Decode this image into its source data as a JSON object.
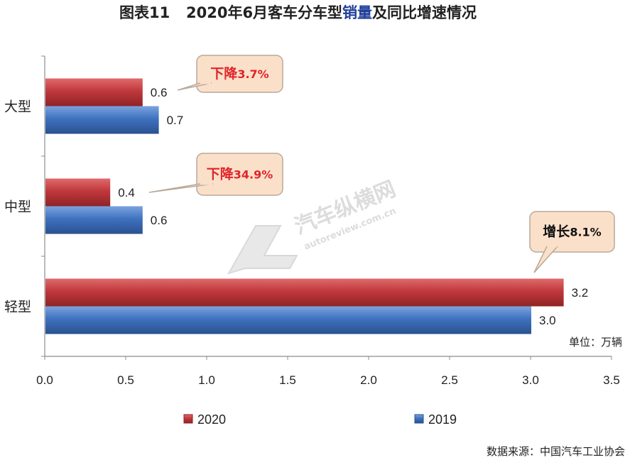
{
  "title_prefix": "图表11",
  "title_parts": [
    {
      "text": "2020年6月客车分车型",
      "color": "#222222"
    },
    {
      "text": "销量",
      "color": "#1f3f99"
    },
    {
      "text": "及同比增速情况",
      "color": "#222222"
    }
  ],
  "unit_label": "单位：万辆",
  "source_label": "数据来源：中国汽车工业协会",
  "watermark": {
    "brand": "汽车纵横网",
    "url": "autoreview.com.cn"
  },
  "colors": {
    "series_2020": "#c0383b",
    "series_2019": "#3f72bf",
    "callout_fill": "#fbe0c9",
    "callout_border": "#b8a99a"
  },
  "chart_data": {
    "type": "bar",
    "orientation": "horizontal",
    "categories": [
      "大型",
      "中型",
      "轻型"
    ],
    "series": [
      {
        "name": "2020",
        "values": [
          0.6,
          0.4,
          3.2
        ],
        "labels": [
          "0.6",
          "0.4",
          "3.2"
        ]
      },
      {
        "name": "2019",
        "values": [
          0.7,
          0.6,
          3.0
        ],
        "labels": [
          "0.7",
          "0.6",
          "3.0"
        ]
      }
    ],
    "xlim": [
      0,
      3.5
    ],
    "xticks": [
      "0.0",
      "0.5",
      "1.0",
      "1.5",
      "2.0",
      "2.5",
      "3.0",
      "3.5"
    ],
    "legend_position": "bottom",
    "grid": false,
    "annotations": [
      {
        "category": "大型",
        "prefix": "下降",
        "value": "3.7%",
        "color": "#e0242a"
      },
      {
        "category": "中型",
        "prefix": "下降",
        "value": "34.9%",
        "color": "#e0242a"
      },
      {
        "category": "轻型",
        "prefix": "增长",
        "value": "8.1%",
        "color": "#111111"
      }
    ]
  }
}
